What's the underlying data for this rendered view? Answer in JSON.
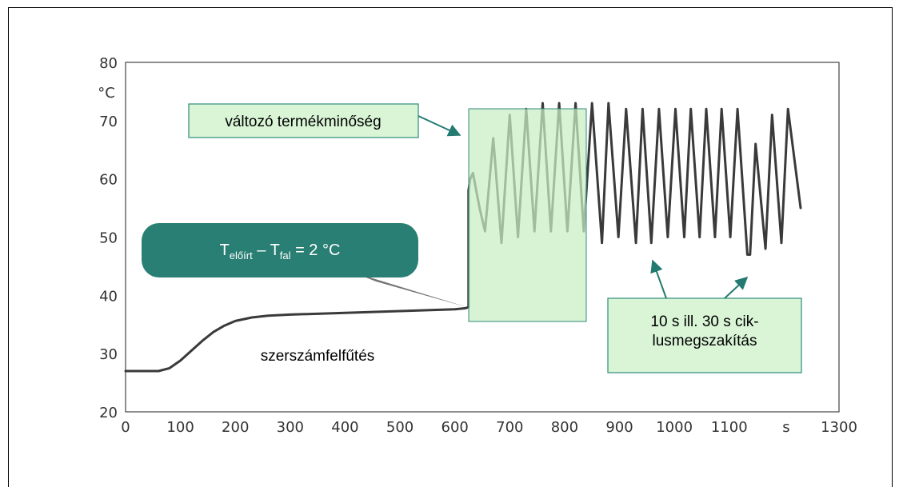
{
  "chart_data": {
    "type": "line",
    "title": "",
    "xlabel": "",
    "xunit": "s",
    "ylabel": "",
    "yunit": "°C",
    "xlim": [
      0,
      1300
    ],
    "ylim": [
      20,
      80
    ],
    "x_ticks": [
      0,
      100,
      200,
      300,
      400,
      500,
      600,
      700,
      800,
      900,
      1000,
      1100,
      1300
    ],
    "y_ticks": [
      20,
      30,
      40,
      50,
      60,
      70,
      80
    ],
    "grid": false,
    "line_color": "#3a3a3a",
    "series": [
      {
        "points": [
          [
            0,
            27
          ],
          [
            60,
            27
          ],
          [
            80,
            27.5
          ],
          [
            100,
            28.8
          ],
          [
            120,
            30.5
          ],
          [
            140,
            32.2
          ],
          [
            160,
            33.7
          ],
          [
            180,
            34.8
          ],
          [
            200,
            35.6
          ],
          [
            230,
            36.2
          ],
          [
            260,
            36.5
          ],
          [
            300,
            36.7
          ],
          [
            400,
            37.0
          ],
          [
            500,
            37.3
          ],
          [
            600,
            37.6
          ],
          [
            620,
            37.8
          ],
          [
            625,
            38.0
          ],
          [
            625,
            58
          ],
          [
            628,
            60
          ],
          [
            633,
            61
          ],
          [
            645,
            55
          ],
          [
            655,
            51
          ],
          [
            670,
            67
          ],
          [
            685,
            49
          ],
          [
            700,
            71
          ],
          [
            715,
            50
          ],
          [
            730,
            72
          ],
          [
            745,
            51
          ],
          [
            760,
            73
          ],
          [
            775,
            51
          ],
          [
            790,
            73
          ],
          [
            805,
            51
          ],
          [
            820,
            73
          ],
          [
            835,
            51
          ],
          [
            850,
            73
          ],
          [
            868,
            49
          ],
          [
            880,
            73
          ],
          [
            898,
            50
          ],
          [
            912,
            72
          ],
          [
            930,
            49
          ],
          [
            942,
            72
          ],
          [
            958,
            49
          ],
          [
            972,
            72
          ],
          [
            988,
            50
          ],
          [
            1002,
            72
          ],
          [
            1018,
            50
          ],
          [
            1030,
            72
          ],
          [
            1046,
            50
          ],
          [
            1058,
            72
          ],
          [
            1074,
            50
          ],
          [
            1086,
            72
          ],
          [
            1102,
            50
          ],
          [
            1115,
            72
          ],
          [
            1133,
            47
          ],
          [
            1138,
            47
          ],
          [
            1148,
            66
          ],
          [
            1166,
            48
          ],
          [
            1178,
            71
          ],
          [
            1195,
            49
          ],
          [
            1207,
            72
          ],
          [
            1230,
            55
          ]
        ]
      }
    ],
    "annotations": {
      "variable_quality": "változó termékminőség",
      "temp_diff": {
        "main": "T",
        "sub1": "előírt",
        "mid": " – T",
        "sub2": "fal",
        "tail": " = 2 °C"
      },
      "heating": "szerszámfelfűtés",
      "interruption_line1": "10 s ill. 30 s cik-",
      "interruption_line2": "lusmegszakítás"
    }
  },
  "colors": {
    "callout_fill": "#d9f5d6",
    "callout_border": "#2f8a7e",
    "teal": "#2a7f74",
    "arrow": "#237a70",
    "highlight_fill": "#c9efc4"
  }
}
